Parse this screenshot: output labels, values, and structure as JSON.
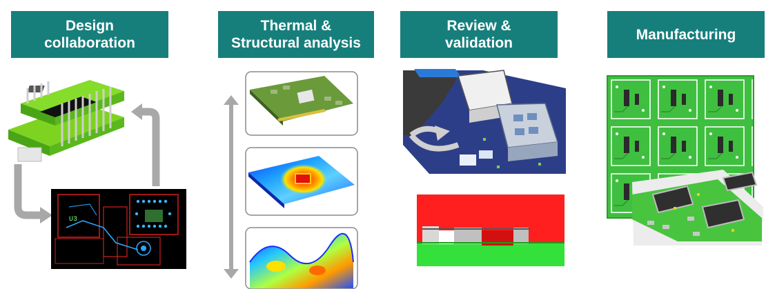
{
  "stages": [
    {
      "line1": "Design",
      "line2": "collaboration"
    },
    {
      "line1": "Thermal &",
      "line2": "Structural analysis"
    },
    {
      "line1": "Review &",
      "line2": "validation"
    },
    {
      "line1": "Manufacturing",
      "line2": ""
    }
  ],
  "colors": {
    "header_bg": "#167f7c",
    "header_text": "#ffffff",
    "pcb_green": "#3fbf3f",
    "arrow_gray": "#a8a8a8"
  },
  "pcb_labels": {
    "board_ref": "U3"
  }
}
